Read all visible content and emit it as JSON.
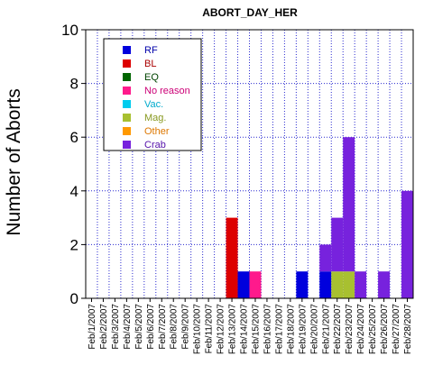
{
  "chart_data": {
    "type": "bar",
    "stacked": true,
    "title": "ABORT_DAY_HER",
    "ylabel": "Number of Aborts",
    "xlabel": "",
    "ylim": [
      0,
      10
    ],
    "yticks": [
      0,
      2,
      4,
      6,
      8,
      10
    ],
    "grid": true,
    "legend_position": "top-left",
    "categories": [
      "Feb/1/2007",
      "Feb/2/2007",
      "Feb/3/2007",
      "Feb/4/2007",
      "Feb/5/2007",
      "Feb/6/2007",
      "Feb/7/2007",
      "Feb/8/2007",
      "Feb/9/2007",
      "Feb/10/2007",
      "Feb/11/2007",
      "Feb/12/2007",
      "Feb/13/2007",
      "Feb/14/2007",
      "Feb/15/2007",
      "Feb/16/2007",
      "Feb/17/2007",
      "Feb/18/2007",
      "Feb/19/2007",
      "Feb/20/2007",
      "Feb/21/2007",
      "Feb/22/2007",
      "Feb/23/2007",
      "Feb/24/2007",
      "Feb/25/2007",
      "Feb/26/2007",
      "Feb/27/2007",
      "Feb/28/2007"
    ],
    "series": [
      {
        "name": "RF",
        "color": "#0000dd",
        "values": [
          0,
          0,
          0,
          0,
          0,
          0,
          0,
          0,
          0,
          0,
          0,
          0,
          0,
          1,
          0,
          0,
          0,
          0,
          1,
          0,
          1,
          0,
          0,
          0,
          0,
          0,
          0,
          0
        ]
      },
      {
        "name": "BL",
        "color": "#dd0000",
        "values": [
          0,
          0,
          0,
          0,
          0,
          0,
          0,
          0,
          0,
          0,
          0,
          0,
          3,
          0,
          0,
          0,
          0,
          0,
          0,
          0,
          0,
          0,
          0,
          0,
          0,
          0,
          0,
          0
        ]
      },
      {
        "name": "EQ",
        "color": "#006600",
        "values": [
          0,
          0,
          0,
          0,
          0,
          0,
          0,
          0,
          0,
          0,
          0,
          0,
          0,
          0,
          0,
          0,
          0,
          0,
          0,
          0,
          0,
          0,
          0,
          0,
          0,
          0,
          0,
          0
        ]
      },
      {
        "name": "No reason",
        "color": "#ff1a8c",
        "values": [
          0,
          0,
          0,
          0,
          0,
          0,
          0,
          0,
          0,
          0,
          0,
          0,
          0,
          0,
          1,
          0,
          0,
          0,
          0,
          0,
          0,
          0,
          0,
          0,
          0,
          0,
          0,
          0
        ]
      },
      {
        "name": "Vac.",
        "color": "#00ccee",
        "values": [
          0,
          0,
          0,
          0,
          0,
          0,
          0,
          0,
          0,
          0,
          0,
          0,
          0,
          0,
          0,
          0,
          0,
          0,
          0,
          0,
          0,
          0,
          0,
          0,
          0,
          0,
          0,
          0
        ]
      },
      {
        "name": "Mag.",
        "color": "#a8c030",
        "values": [
          0,
          0,
          0,
          0,
          0,
          0,
          0,
          0,
          0,
          0,
          0,
          0,
          0,
          0,
          0,
          0,
          0,
          0,
          0,
          0,
          0,
          1,
          1,
          0,
          0,
          0,
          0,
          0
        ]
      },
      {
        "name": "Other",
        "color": "#ff9900",
        "values": [
          0,
          0,
          0,
          0,
          0,
          0,
          0,
          0,
          0,
          0,
          0,
          0,
          0,
          0,
          0,
          0,
          0,
          0,
          0,
          0,
          0,
          0,
          0,
          0,
          0,
          0,
          0,
          0
        ]
      },
      {
        "name": "Crab",
        "color": "#7722dd",
        "values": [
          0,
          0,
          0,
          0,
          0,
          0,
          0,
          0,
          0,
          0,
          0,
          0,
          0,
          0,
          0,
          0,
          0,
          0,
          0,
          0,
          1,
          2,
          5,
          1,
          0,
          1,
          0,
          4
        ]
      }
    ],
    "legend_text_colors": {
      "RF": "#0000aa",
      "BL": "#aa0000",
      "EQ": "#004400",
      "No reason": "#cc0077",
      "Vac.": "#00aacc",
      "Mag.": "#889920",
      "Other": "#dd7700",
      "Crab": "#5511aa"
    }
  }
}
